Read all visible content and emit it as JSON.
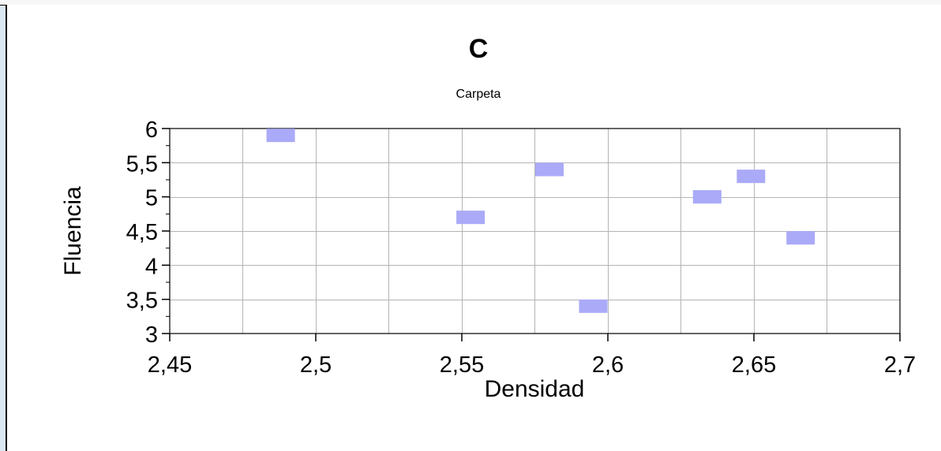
{
  "chart_data": {
    "type": "scatter",
    "title": "C",
    "subtitle": "Carpeta",
    "xlabel": "Densidad",
    "ylabel": "Fluencia",
    "xlim": [
      2.45,
      2.7
    ],
    "ylim": [
      3,
      6
    ],
    "x_ticks": [
      2.45,
      2.5,
      2.55,
      2.6,
      2.65,
      2.7
    ],
    "x_tick_labels": [
      "2,45",
      "2,5",
      "2,55",
      "2,6",
      "2,65",
      "2,7"
    ],
    "y_ticks": [
      3,
      3.5,
      4,
      4.5,
      5,
      5.5,
      6
    ],
    "y_tick_labels": [
      "3",
      "3,5",
      "4",
      "4,5",
      "5",
      "5,5",
      "6"
    ],
    "grid": true,
    "marker_color": "#aaaaf8",
    "points": [
      {
        "x": 2.488,
        "y": 5.9
      },
      {
        "x": 2.553,
        "y": 4.7
      },
      {
        "x": 2.58,
        "y": 5.4
      },
      {
        "x": 2.595,
        "y": 3.4
      },
      {
        "x": 2.634,
        "y": 5.0
      },
      {
        "x": 2.649,
        "y": 5.3
      },
      {
        "x": 2.666,
        "y": 4.4
      }
    ]
  }
}
